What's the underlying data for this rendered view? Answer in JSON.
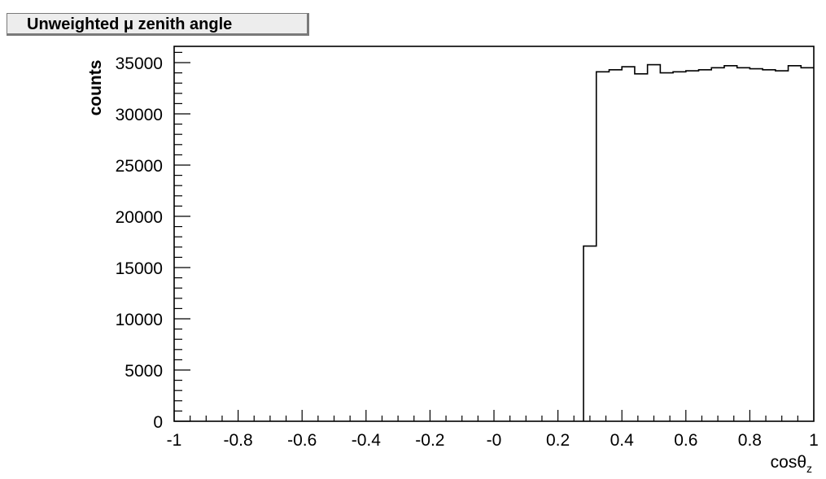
{
  "chart_data": {
    "type": "histogram",
    "title": "Unweighted μ zenith angle",
    "xlabel": "cosθ",
    "xlabel_subscript": "z",
    "ylabel": "counts",
    "xlim": [
      -1,
      1
    ],
    "ylim": [
      0,
      36500
    ],
    "xticks": [
      -1,
      -0.8,
      -0.6,
      -0.4,
      -0.2,
      0,
      0.2,
      0.4,
      0.6,
      0.8,
      1
    ],
    "xtick_labels": [
      "-1",
      "-0.8",
      "-0.6",
      "-0.4",
      "-0.2",
      "-0",
      "0.2",
      "0.4",
      "0.6",
      "0.8",
      "1"
    ],
    "yticks": [
      0,
      5000,
      10000,
      15000,
      20000,
      25000,
      30000,
      35000
    ],
    "ytick_labels": [
      "0",
      "5000",
      "10000",
      "15000",
      "20000",
      "25000",
      "30000",
      "35000"
    ],
    "bin_edges": [
      0.28,
      0.32,
      0.36,
      0.4,
      0.44,
      0.48,
      0.52,
      0.56,
      0.6,
      0.64,
      0.68,
      0.72,
      0.76,
      0.8,
      0.84,
      0.88,
      0.92,
      0.96,
      1.0
    ],
    "values": [
      17100,
      34100,
      34300,
      34600,
      33900,
      34800,
      34000,
      34100,
      34200,
      34300,
      34500,
      34700,
      34500,
      34400,
      34300,
      34200,
      34700,
      34500
    ],
    "line_color": "#000000",
    "grid": false,
    "legend": "none"
  }
}
